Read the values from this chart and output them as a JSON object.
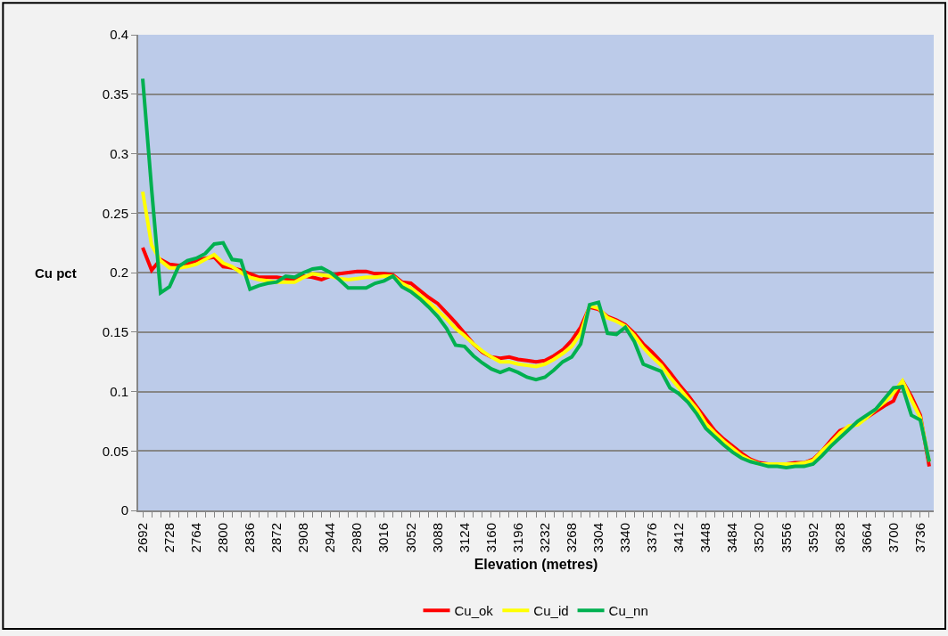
{
  "chart_data": {
    "type": "line",
    "xlabel": "Elevation (metres)",
    "ylabel": "Cu pct",
    "x": [
      2692,
      2704,
      2716,
      2728,
      2740,
      2752,
      2764,
      2776,
      2788,
      2800,
      2812,
      2824,
      2836,
      2848,
      2860,
      2872,
      2884,
      2896,
      2908,
      2920,
      2932,
      2944,
      2956,
      2968,
      2980,
      2992,
      3004,
      3016,
      3028,
      3040,
      3052,
      3064,
      3076,
      3088,
      3100,
      3112,
      3124,
      3136,
      3148,
      3160,
      3172,
      3184,
      3196,
      3208,
      3220,
      3232,
      3244,
      3256,
      3268,
      3280,
      3292,
      3304,
      3316,
      3328,
      3340,
      3352,
      3364,
      3376,
      3388,
      3400,
      3412,
      3424,
      3436,
      3448,
      3460,
      3472,
      3484,
      3496,
      3508,
      3520,
      3532,
      3544,
      3556,
      3568,
      3580,
      3592,
      3604,
      3616,
      3628,
      3640,
      3652,
      3664,
      3676,
      3688,
      3700,
      3712,
      3724,
      3736,
      3748
    ],
    "series": [
      {
        "name": "Cu_ok",
        "color": "#ff0000",
        "values": [
          0.221,
          0.202,
          0.211,
          0.207,
          0.206,
          0.207,
          0.21,
          0.212,
          0.213,
          0.205,
          0.204,
          0.202,
          0.199,
          0.196,
          0.196,
          0.196,
          0.195,
          0.194,
          0.197,
          0.196,
          0.194,
          0.197,
          0.199,
          0.2,
          0.201,
          0.201,
          0.199,
          0.199,
          0.198,
          0.192,
          0.191,
          0.185,
          0.179,
          0.174,
          0.166,
          0.158,
          0.149,
          0.14,
          0.133,
          0.129,
          0.128,
          0.129,
          0.127,
          0.126,
          0.125,
          0.126,
          0.13,
          0.135,
          0.143,
          0.154,
          0.171,
          0.169,
          0.163,
          0.16,
          0.156,
          0.149,
          0.14,
          0.133,
          0.125,
          0.116,
          0.106,
          0.097,
          0.087,
          0.077,
          0.067,
          0.06,
          0.054,
          0.048,
          0.043,
          0.04,
          0.039,
          0.039,
          0.039,
          0.04,
          0.04,
          0.043,
          0.05,
          0.059,
          0.067,
          0.07,
          0.073,
          0.078,
          0.083,
          0.088,
          0.092,
          0.109,
          0.096,
          0.08,
          0.037
        ]
      },
      {
        "name": "Cu_id",
        "color": "#ffff00",
        "values": [
          0.268,
          0.223,
          0.21,
          0.204,
          0.204,
          0.205,
          0.207,
          0.211,
          0.215,
          0.208,
          0.205,
          0.2,
          0.196,
          0.194,
          0.193,
          0.192,
          0.192,
          0.192,
          0.196,
          0.199,
          0.198,
          0.197,
          0.195,
          0.194,
          0.195,
          0.196,
          0.196,
          0.197,
          0.197,
          0.191,
          0.187,
          0.181,
          0.175,
          0.168,
          0.161,
          0.153,
          0.147,
          0.14,
          0.134,
          0.129,
          0.125,
          0.125,
          0.123,
          0.122,
          0.121,
          0.123,
          0.127,
          0.132,
          0.138,
          0.149,
          0.172,
          0.17,
          0.162,
          0.159,
          0.155,
          0.147,
          0.137,
          0.129,
          0.122,
          0.112,
          0.103,
          0.094,
          0.085,
          0.073,
          0.065,
          0.058,
          0.052,
          0.046,
          0.042,
          0.039,
          0.039,
          0.039,
          0.039,
          0.039,
          0.04,
          0.042,
          0.05,
          0.057,
          0.065,
          0.071,
          0.072,
          0.078,
          0.085,
          0.091,
          0.099,
          0.109,
          0.093,
          0.078,
          0.041
        ]
      },
      {
        "name": "Cu_nn",
        "color": "#00b050",
        "values": [
          0.363,
          0.27,
          0.183,
          0.188,
          0.205,
          0.21,
          0.212,
          0.216,
          0.224,
          0.225,
          0.211,
          0.21,
          0.186,
          0.189,
          0.191,
          0.192,
          0.197,
          0.196,
          0.2,
          0.203,
          0.204,
          0.2,
          0.194,
          0.187,
          0.187,
          0.187,
          0.191,
          0.193,
          0.197,
          0.188,
          0.184,
          0.178,
          0.171,
          0.163,
          0.153,
          0.139,
          0.138,
          0.13,
          0.124,
          0.119,
          0.116,
          0.119,
          0.116,
          0.112,
          0.11,
          0.112,
          0.118,
          0.125,
          0.129,
          0.14,
          0.173,
          0.175,
          0.149,
          0.148,
          0.154,
          0.142,
          0.123,
          0.12,
          0.117,
          0.103,
          0.098,
          0.091,
          0.081,
          0.069,
          0.062,
          0.055,
          0.049,
          0.044,
          0.041,
          0.039,
          0.037,
          0.037,
          0.036,
          0.037,
          0.037,
          0.039,
          0.046,
          0.054,
          0.061,
          0.068,
          0.075,
          0.08,
          0.085,
          0.094,
          0.103,
          0.104,
          0.08,
          0.076,
          0.041
        ]
      }
    ],
    "xlim": [
      2686,
      3754
    ],
    "xticks": [
      2692,
      {
        "value": 2704,
        "label": null
      },
      {
        "value": 2716,
        "label": null
      },
      2728,
      {
        "value": 2740,
        "label": null
      },
      {
        "value": 2752,
        "label": null
      },
      2764,
      {
        "value": 2776,
        "label": null
      },
      {
        "value": 2788,
        "label": null
      },
      2800,
      {
        "value": 2812,
        "label": null
      },
      {
        "value": 2824,
        "label": null
      },
      2836,
      {
        "value": 2848,
        "label": null
      },
      {
        "value": 2860,
        "label": null
      },
      2872,
      {
        "value": 2884,
        "label": null
      },
      {
        "value": 2896,
        "label": null
      },
      2908,
      {
        "value": 2920,
        "label": null
      },
      {
        "value": 2932,
        "label": null
      },
      2944,
      {
        "value": 2956,
        "label": null
      },
      {
        "value": 2968,
        "label": null
      },
      2980,
      {
        "value": 2992,
        "label": null
      },
      {
        "value": 3004,
        "label": null
      },
      3016,
      {
        "value": 3028,
        "label": null
      },
      {
        "value": 3040,
        "label": null
      },
      3052,
      {
        "value": 3064,
        "label": null
      },
      {
        "value": 3076,
        "label": null
      },
      3088,
      {
        "value": 3100,
        "label": null
      },
      {
        "value": 3112,
        "label": null
      },
      3124,
      {
        "value": 3136,
        "label": null
      },
      {
        "value": 3148,
        "label": null
      },
      3160,
      {
        "value": 3172,
        "label": null
      },
      {
        "value": 3184,
        "label": null
      },
      3196,
      {
        "value": 3208,
        "label": null
      },
      {
        "value": 3220,
        "label": null
      },
      3232,
      {
        "value": 3244,
        "label": null
      },
      {
        "value": 3256,
        "label": null
      },
      3268,
      {
        "value": 3280,
        "label": null
      },
      {
        "value": 3292,
        "label": null
      },
      3304,
      {
        "value": 3316,
        "label": null
      },
      {
        "value": 3328,
        "label": null
      },
      3340,
      {
        "value": 3352,
        "label": null
      },
      {
        "value": 3364,
        "label": null
      },
      3376,
      {
        "value": 3388,
        "label": null
      },
      {
        "value": 3400,
        "label": null
      },
      3412,
      {
        "value": 3424,
        "label": null
      },
      {
        "value": 3436,
        "label": null
      },
      3448,
      {
        "value": 3460,
        "label": null
      },
      {
        "value": 3472,
        "label": null
      },
      3484,
      {
        "value": 3496,
        "label": null
      },
      {
        "value": 3508,
        "label": null
      },
      3520,
      {
        "value": 3532,
        "label": null
      },
      {
        "value": 3544,
        "label": null
      },
      3556,
      {
        "value": 3568,
        "label": null
      },
      {
        "value": 3580,
        "label": null
      },
      3592,
      {
        "value": 3604,
        "label": null
      },
      {
        "value": 3616,
        "label": null
      },
      3628,
      {
        "value": 3640,
        "label": null
      },
      {
        "value": 3652,
        "label": null
      },
      3664,
      {
        "value": 3676,
        "label": null
      },
      {
        "value": 3688,
        "label": null
      },
      3700,
      {
        "value": 3712,
        "label": null
      },
      {
        "value": 3724,
        "label": null
      },
      3736,
      {
        "value": 3748,
        "label": null
      }
    ],
    "ylim": [
      0,
      0.4
    ],
    "yticks": [
      0,
      0.05,
      0.1,
      0.15,
      0.2,
      0.25,
      0.3,
      0.35,
      0.4
    ],
    "grid": "y",
    "legend": "bottom",
    "marker": "none",
    "line_style": "solid"
  }
}
